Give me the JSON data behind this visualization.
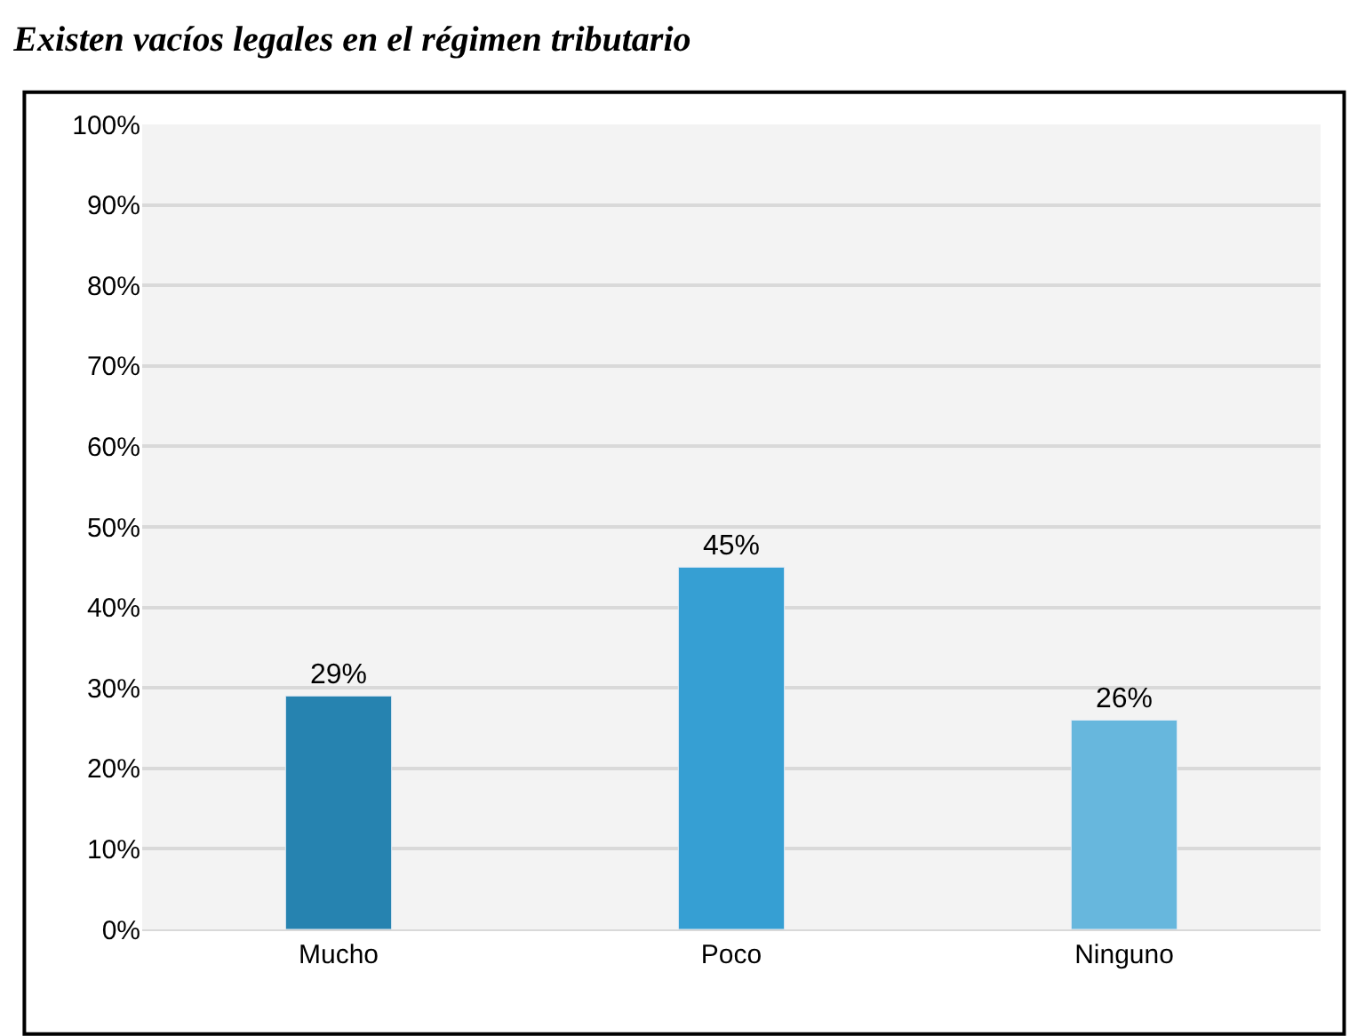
{
  "chart_data": {
    "type": "bar",
    "title": "Existen vacíos legales en el régimen tributario",
    "categories": [
      "Mucho",
      "Poco",
      "Ninguno"
    ],
    "values": [
      29,
      45,
      26
    ],
    "colors": [
      "#2683b0",
      "#369fd3",
      "#67b7dd"
    ],
    "value_labels": [
      "29%",
      "45%",
      "26%"
    ],
    "ylim": [
      0,
      100
    ],
    "yticks": [
      {
        "value": 0,
        "label": "0%"
      },
      {
        "value": 10,
        "label": "10%"
      },
      {
        "value": 20,
        "label": "20%"
      },
      {
        "value": 30,
        "label": "30%"
      },
      {
        "value": 40,
        "label": "40%"
      },
      {
        "value": 50,
        "label": "50%"
      },
      {
        "value": 60,
        "label": "60%"
      },
      {
        "value": 70,
        "label": "70%"
      },
      {
        "value": 80,
        "label": "80%"
      },
      {
        "value": 90,
        "label": "90%"
      },
      {
        "value": 100,
        "label": "100%"
      }
    ],
    "grid": "y"
  }
}
